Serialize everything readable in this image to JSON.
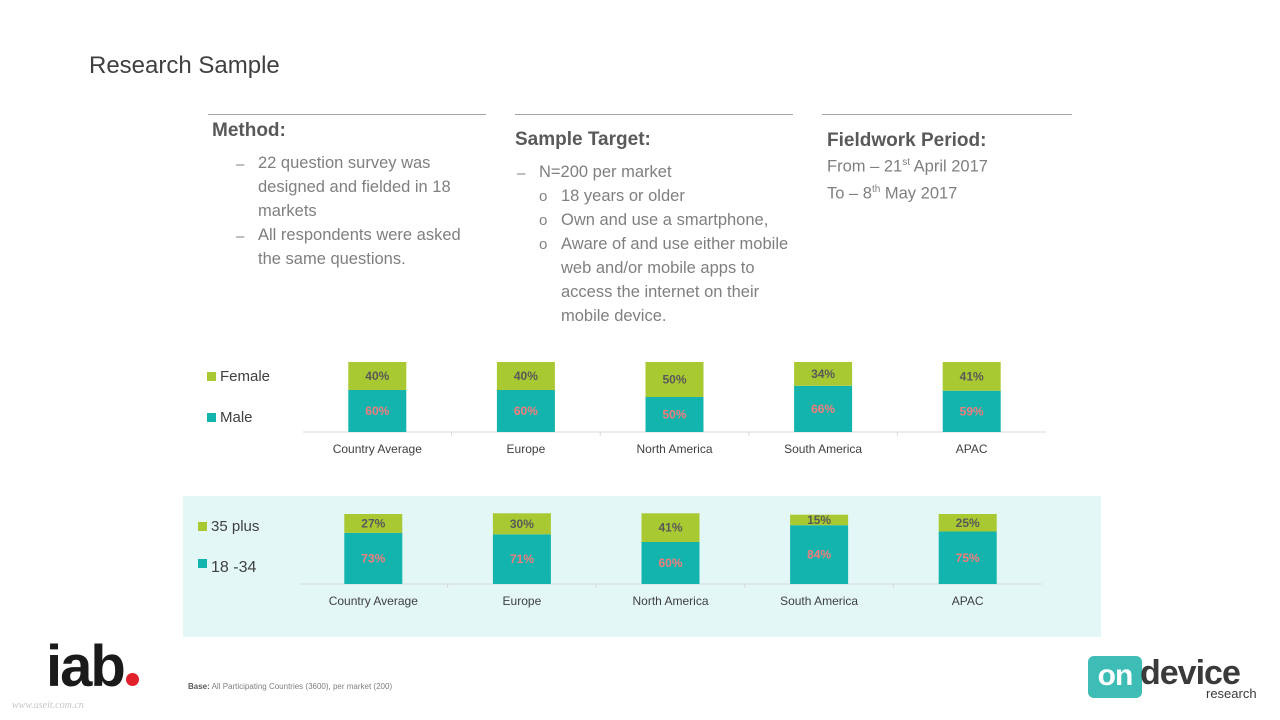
{
  "title": "Research Sample",
  "method": {
    "heading": "Method:",
    "lines": [
      "22 question survey was",
      "designed and fielded in 18",
      "markets",
      "All respondents were asked",
      "the same questions."
    ],
    "dash": "–"
  },
  "sample": {
    "heading": "Sample Target:",
    "lines": [
      "N=200 per market",
      "18 years or older",
      "Own and use a smartphone,",
      "Aware of and use either mobile",
      "web and/or mobile apps to",
      "access the internet on their",
      "mobile device."
    ],
    "dash": "–",
    "bullet": "o"
  },
  "fieldwork": {
    "heading": "Fieldwork Period:",
    "from_prefix": "From – 21",
    "from_sup": "st",
    "from_suffix": " April 2017",
    "to_prefix": "To – 8",
    "to_sup": "th",
    "to_suffix": " May 2017"
  },
  "chart_data": [
    {
      "type": "bar",
      "stacked": true,
      "categories": [
        "Country Average",
        "Europe",
        "North America",
        "South America",
        "APAC"
      ],
      "series": [
        {
          "name": "Male",
          "values": [
            60,
            60,
            50,
            66,
            59
          ],
          "labels": [
            "60%",
            "60%",
            "50%",
            "66%",
            "59%"
          ],
          "color": "#14b4ae"
        },
        {
          "name": "Female",
          "values": [
            40,
            40,
            50,
            34,
            41
          ],
          "labels": [
            "40%",
            "40%",
            "50%",
            "34%",
            "41%"
          ],
          "color": "#a9c932"
        }
      ],
      "legend": "left",
      "ylim": [
        0,
        100
      ]
    },
    {
      "type": "bar",
      "stacked": true,
      "categories": [
        "Country Average",
        "Europe",
        "North America",
        "South America",
        "APAC"
      ],
      "series": [
        {
          "name": "18 -34",
          "values": [
            73,
            71,
            60,
            84,
            75
          ],
          "labels": [
            "73%",
            "71%",
            "60%",
            "84%",
            "75%"
          ],
          "color": "#14b4ae"
        },
        {
          "name": "35 plus",
          "values": [
            27,
            30,
            41,
            15,
            25
          ],
          "labels": [
            "27%",
            "30%",
            "41%",
            "15%",
            "25%"
          ],
          "color": "#a9c932"
        }
      ],
      "legend": "left",
      "ylim": [
        0,
        100
      ]
    }
  ],
  "footer": {
    "base_label": "Base:",
    "base_text": " All Participating Countries (3600), per market (200)",
    "watermark": "www.useit.com.cn"
  },
  "logos": {
    "iab": "iab",
    "ondevice_on": "on",
    "ondevice_device": "device",
    "ondevice_research": "research"
  },
  "colors": {
    "teal": "#14b4ae",
    "green": "#a9c932",
    "band": "#e2f7f6",
    "iab_red": "#e0202a"
  }
}
